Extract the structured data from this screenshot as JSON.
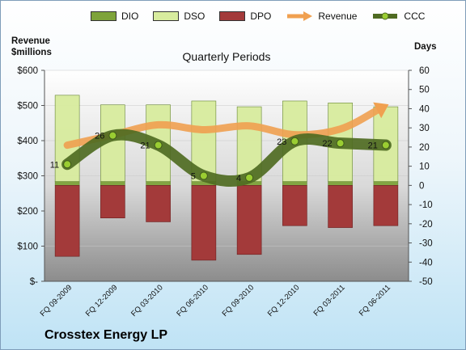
{
  "chart_data": {
    "type": "bar",
    "title": "Quarterly Periods",
    "company": "Crosstex Energy LP",
    "ylabel_left": [
      "Revenue",
      "$millions"
    ],
    "ylabel_right": "Days",
    "categories": [
      "FQ 09-2009",
      "FQ 12-2009",
      "FQ 03-2010",
      "FQ 06-2010",
      "FQ 09-2010",
      "FQ 12-2010",
      "FQ 03-2011",
      "FQ 06-2011"
    ],
    "ylim_left": [
      0,
      600
    ],
    "yticks_left": [
      "$-",
      "$100",
      "$200",
      "$300",
      "$400",
      "$500",
      "$600"
    ],
    "ylim_right": [
      -50,
      60
    ],
    "yticks_right": [
      "-50",
      "-40",
      "-30",
      "-20",
      "-10",
      "0",
      "10",
      "20",
      "30",
      "40",
      "50",
      "60"
    ],
    "legend": [
      "DIO",
      "DSO",
      "DPO",
      "Revenue",
      "CCC"
    ],
    "legend_position": "top",
    "series": [
      {
        "name": "DIO",
        "color": "#7ea33a",
        "values": [
          2,
          2,
          2,
          2,
          2,
          2,
          2,
          2
        ]
      },
      {
        "name": "DSO",
        "color": "#d8ec9e",
        "values": [
          45,
          40,
          40,
          42,
          39,
          42,
          41,
          39
        ]
      },
      {
        "name": "DPO",
        "color": "#a33a3a",
        "values": [
          -37,
          -17,
          -19,
          -39,
          -36,
          -21,
          -22,
          -21
        ]
      },
      {
        "name": "Revenue",
        "color": "#f0a050",
        "values": [
          387,
          416,
          445,
          431,
          442,
          417,
          433,
          499
        ]
      },
      {
        "name": "CCC",
        "color": "#6b8e23",
        "values": [
          11,
          26,
          21,
          5,
          4,
          23,
          22,
          21
        ],
        "labels": [
          "11",
          "26",
          "21",
          "5",
          "4",
          "23",
          "22",
          "21"
        ]
      }
    ]
  }
}
